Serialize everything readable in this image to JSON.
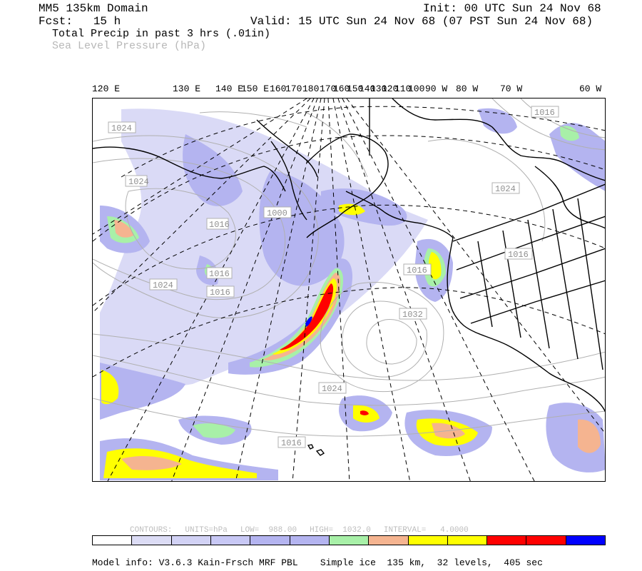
{
  "header": {
    "domain_title": "MM5 135km Domain",
    "fcst_label": "Fcst:",
    "fcst_value": "15 h",
    "init_text": "Init: 00 UTC Sun 24 Nov 68",
    "valid_text": "Valid: 15 UTC Sun 24 Nov 68 (07 PST Sun 24 Nov 68)",
    "field_primary": "Total Precip in past 3 hrs (.01in)",
    "field_secondary": "Sea Level Pressure (hPa)"
  },
  "longitude_labels": [
    "120 E",
    "130 E",
    "140 E",
    "150 E",
    "160",
    "170",
    "180",
    "170",
    "160",
    "150",
    "140",
    "130",
    "120",
    "110",
    "100",
    "90 W",
    "80 W",
    "70 W",
    "60 W"
  ],
  "pressure_labels": [
    "1024",
    "1024",
    "1016",
    "1000",
    "1016",
    "1024",
    "1016",
    "1032",
    "1024",
    "1016",
    "1016",
    "1016",
    "1016",
    "1024"
  ],
  "colors": {
    "precip_level_1": "#d6d6f5",
    "precip_level_2": "#b4b4f0",
    "precip_level_3": "#a8f0a8",
    "precip_level_4": "#f5b490",
    "precip_level_5": "#ffff00",
    "precip_level_6": "#ff0000",
    "precip_level_7": "#0000ff",
    "contour": "#b0b0b0",
    "coastline": "#000000"
  },
  "colorbar": {
    "colors": [
      "#ffffff",
      "#dcdcf5",
      "#d2d2f5",
      "#c8c8f5",
      "#b4b4f0",
      "#b4b4f0",
      "#a8f0a8",
      "#f5b490",
      "#ffff00",
      "#ffff00",
      "#ff0000",
      "#ff0000",
      "#0000ff"
    ]
  },
  "contours_info": {
    "label": "CONTOURS:",
    "units": "UNITS=hPa",
    "low": "LOW=  988.00",
    "high": "HIGH=  1032.0",
    "interval": "INTERVAL=   4.0000"
  },
  "footer": {
    "model_info": "Model info: V3.6.3 Kain-Frsch MRF PBL    Simple ice  135 km,  32 levels,  405 sec"
  }
}
